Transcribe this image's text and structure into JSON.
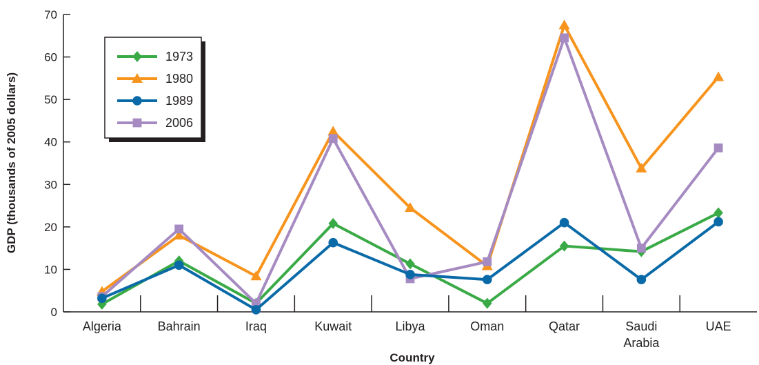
{
  "chart_data": {
    "type": "line",
    "title": "",
    "xlabel": "Country",
    "ylabel": "GDP (thousands of 2005 dollars)",
    "ylim": [
      0,
      70
    ],
    "yticks": [
      0,
      10,
      20,
      30,
      40,
      50,
      60,
      70
    ],
    "grid": false,
    "legend_position": "top-left",
    "categories": [
      "Algeria",
      "Bahrain",
      "Iraq",
      "Kuwait",
      "Libya",
      "Oman",
      "Qatar",
      "Saudi Arabia",
      "UAE"
    ],
    "category_lines": [
      [
        "Algeria"
      ],
      [
        "Bahrain"
      ],
      [
        "Iraq"
      ],
      [
        "Kuwait"
      ],
      [
        "Libya"
      ],
      [
        "Oman"
      ],
      [
        "Qatar"
      ],
      [
        "Saudi",
        "Arabia"
      ],
      [
        "UAE"
      ]
    ],
    "series": [
      {
        "name": "1973",
        "color": "#3aaa47",
        "marker": "diamond",
        "values": [
          1.8,
          12.0,
          2.0,
          20.8,
          11.3,
          2.0,
          15.5,
          14.2,
          23.3
        ]
      },
      {
        "name": "1980",
        "color": "#f7941d",
        "marker": "triangle",
        "values": [
          4.8,
          18.0,
          8.4,
          42.5,
          24.5,
          10.8,
          67.5,
          33.8,
          55.3
        ]
      },
      {
        "name": "1989",
        "color": "#0a6aa8",
        "marker": "circle",
        "values": [
          3.2,
          11.0,
          0.5,
          16.3,
          8.8,
          7.6,
          21.0,
          7.6,
          21.2
        ]
      },
      {
        "name": "2006",
        "color": "#a68bc2",
        "marker": "square",
        "values": [
          3.6,
          19.5,
          2.0,
          40.8,
          7.8,
          11.8,
          64.5,
          15.0,
          38.6
        ]
      }
    ]
  }
}
